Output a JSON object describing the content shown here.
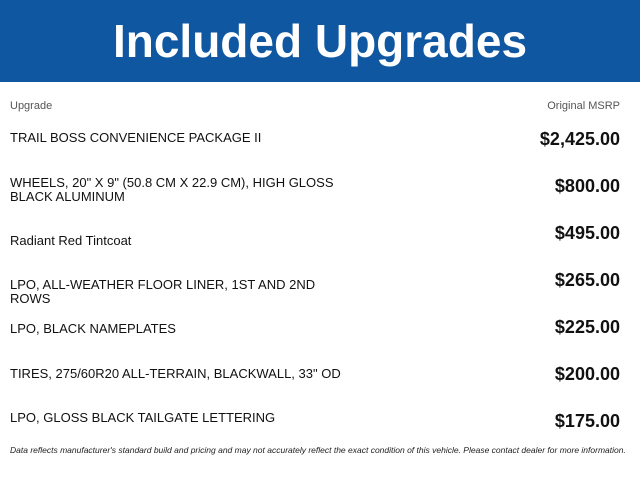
{
  "header": {
    "title": "Included Upgrades",
    "color": "#0f57a0"
  },
  "columns": {
    "upgrade": "Upgrade",
    "msrp": "Original MSRP"
  },
  "rows": [
    {
      "label": "TRAIL BOSS CONVENIENCE PACKAGE II",
      "price": "$2,425.00"
    },
    {
      "label": "WHEELS, 20\" X 9\" (50.8 CM X 22.9 CM), HIGH GLOSS BLACK ALUMINUM",
      "price": "$800.00"
    },
    {
      "label": "Radiant Red Tintcoat",
      "price": "$495.00"
    },
    {
      "label": "LPO, ALL-WEATHER FLOOR LINER, 1ST AND 2ND ROWS",
      "price": "$265.00"
    },
    {
      "label": "LPO, BLACK NAMEPLATES",
      "price": "$225.00"
    },
    {
      "label": "TIRES, 275/60R20 ALL-TERRAIN, BLACKWALL, 33\" OD",
      "price": "$200.00"
    },
    {
      "label": "LPO, GLOSS BLACK TAILGATE LETTERING",
      "price": "$175.00"
    }
  ],
  "disclaimer": "Data reflects manufacturer's standard build and pricing and may not accurately reflect the exact condition of this vehicle. Please contact dealer for more information."
}
